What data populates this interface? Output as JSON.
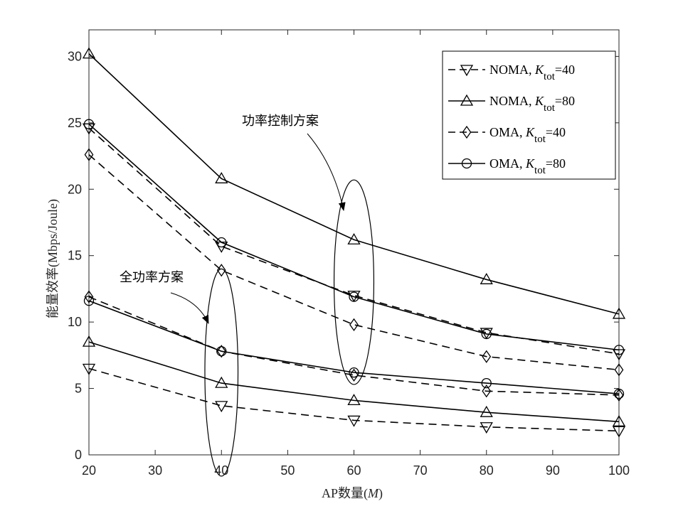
{
  "chart_data": {
    "type": "line",
    "xlabel": "AP数量(M)",
    "ylabel": "能量效率(Mbps/Joule)",
    "xlim": [
      20,
      100
    ],
    "ylim": [
      0,
      32
    ],
    "xticks": [
      20,
      30,
      40,
      50,
      60,
      70,
      80,
      90,
      100
    ],
    "yticks": [
      0,
      5,
      10,
      15,
      20,
      25,
      30
    ],
    "grid": false,
    "legend_position": "top-right",
    "x": [
      20,
      40,
      60,
      80,
      100
    ],
    "series": [
      {
        "name": "NOMA, K_tot=40",
        "group": "功率控制方案",
        "marker": "triangle-down",
        "dash": "dashed",
        "values": [
          24.6,
          15.7,
          12.0,
          9.2,
          7.6
        ]
      },
      {
        "name": "NOMA, K_tot=80",
        "group": "功率控制方案",
        "marker": "triangle-up",
        "dash": "solid",
        "values": [
          30.2,
          20.8,
          16.2,
          13.2,
          10.6
        ]
      },
      {
        "name": "OMA, K_tot=40",
        "group": "功率控制方案",
        "marker": "diamond",
        "dash": "dashed",
        "values": [
          22.6,
          13.9,
          9.8,
          7.4,
          6.4
        ]
      },
      {
        "name": "OMA, K_tot=80",
        "group": "功率控制方案",
        "marker": "circle",
        "dash": "solid",
        "values": [
          24.9,
          16.0,
          11.9,
          9.1,
          7.9
        ]
      },
      {
        "name": "NOMA, K_tot=40",
        "group": "全功率方案",
        "marker": "triangle-down",
        "dash": "dashed",
        "values": [
          6.5,
          3.7,
          2.6,
          2.1,
          1.8
        ]
      },
      {
        "name": "NOMA, K_tot=80",
        "group": "全功率方案",
        "marker": "triangle-up",
        "dash": "solid",
        "values": [
          8.5,
          5.4,
          4.1,
          3.2,
          2.5
        ]
      },
      {
        "name": "OMA, K_tot=40",
        "group": "全功率方案",
        "marker": "diamond",
        "dash": "dashed",
        "values": [
          11.9,
          7.8,
          6.0,
          4.8,
          4.5
        ]
      },
      {
        "name": "OMA, K_tot=80",
        "group": "全功率方案",
        "marker": "circle",
        "dash": "solid",
        "values": [
          11.6,
          7.8,
          6.2,
          5.4,
          4.6
        ]
      }
    ],
    "legend": [
      {
        "prefix": "NOMA, ",
        "k": "K",
        "sub": "tot",
        "suffix": "=40",
        "marker": "triangle-down",
        "dash": "dashed"
      },
      {
        "prefix": "NOMA, ",
        "k": "K",
        "sub": "tot",
        "suffix": "=80",
        "marker": "triangle-up",
        "dash": "solid"
      },
      {
        "prefix": "OMA, ",
        "k": "K",
        "sub": "tot",
        "suffix": "=40",
        "marker": "diamond",
        "dash": "dashed"
      },
      {
        "prefix": "OMA, ",
        "k": "K",
        "sub": "tot",
        "suffix": "=80",
        "marker": "circle",
        "dash": "solid"
      }
    ],
    "annotations": [
      {
        "text": "功率控制方案",
        "ellipse_center": [
          60,
          13.0
        ],
        "ellipse_radii": [
          3.0,
          7.7
        ]
      },
      {
        "text": "全功率方案",
        "ellipse_center": [
          40,
          6.2
        ],
        "ellipse_radii": [
          2.5,
          7.8
        ]
      }
    ]
  }
}
